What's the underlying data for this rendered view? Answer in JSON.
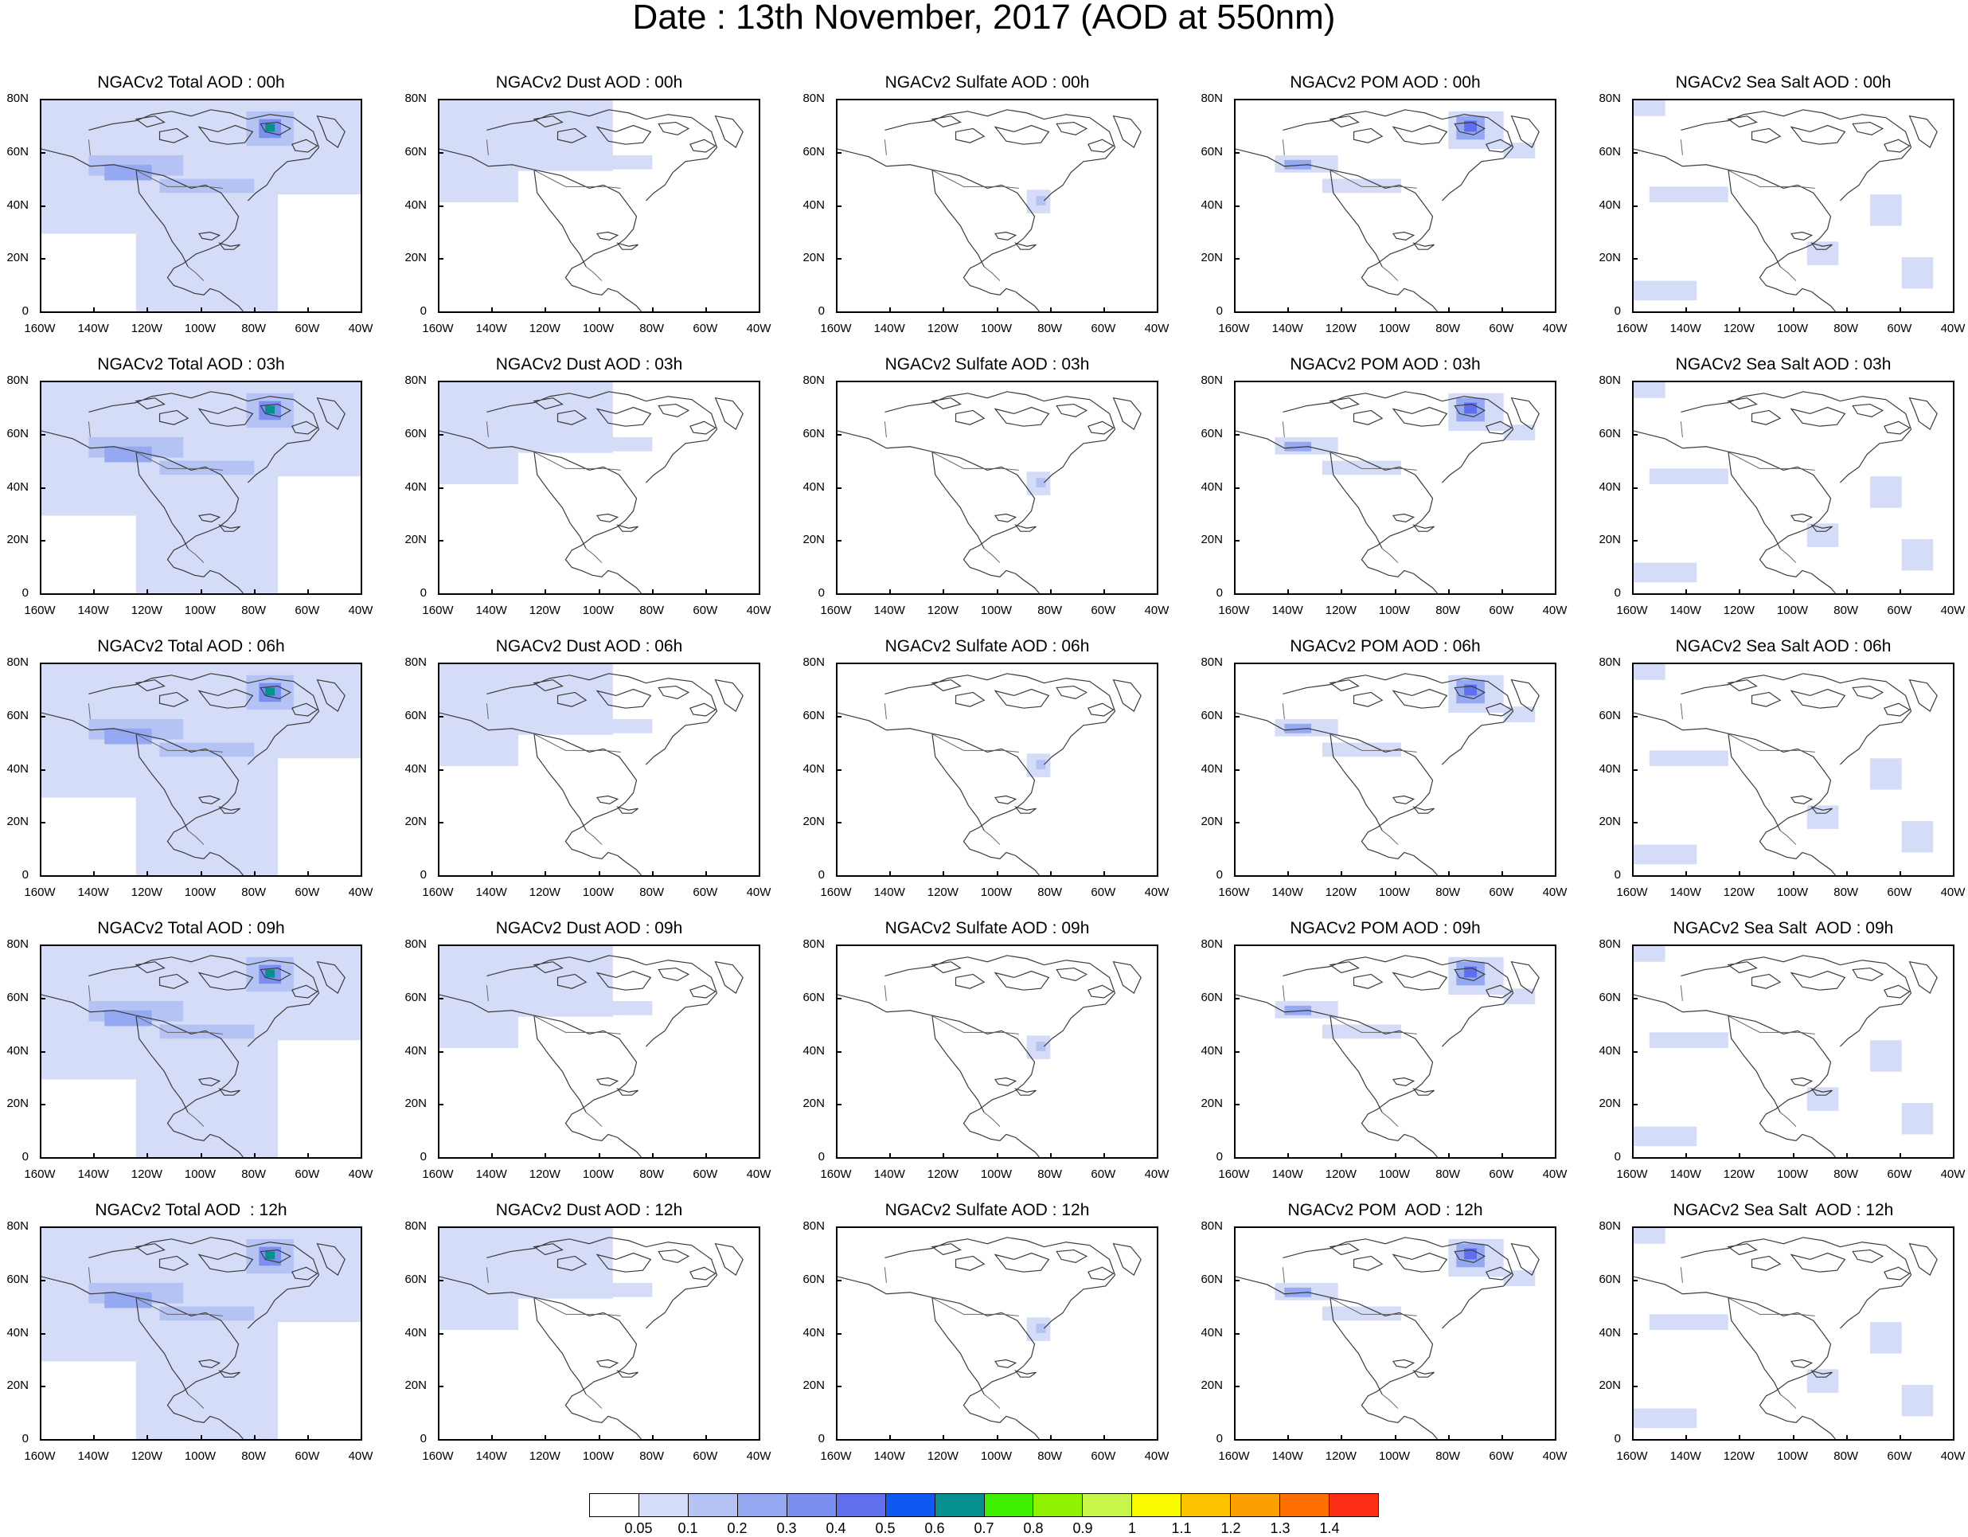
{
  "title": "Date : 13th November, 2017 (AOD at 550nm)",
  "lat_labels": [
    "80N",
    "60N",
    "40N",
    "20N",
    "0"
  ],
  "lon_labels": [
    "160W",
    "140W",
    "120W",
    "100W",
    "80W",
    "60W",
    "40W"
  ],
  "panels": [
    [
      "NGACv2 Total AOD : 00h",
      "NGACv2 Dust AOD : 00h",
      "NGACv2 Sulfate AOD : 00h",
      "NGACv2 POM AOD : 00h",
      "NGACv2 Sea Salt AOD : 00h"
    ],
    [
      "NGACv2 Total AOD : 03h",
      "NGACv2 Dust AOD : 03h",
      "NGACv2 Sulfate AOD : 03h",
      "NGACv2 POM AOD : 03h",
      "NGACv2 Sea Salt AOD : 03h"
    ],
    [
      "NGACv2 Total AOD : 06h",
      "NGACv2 Dust AOD : 06h",
      "NGACv2 Sulfate AOD : 06h",
      "NGACv2 POM AOD : 06h",
      "NGACv2 Sea Salt AOD : 06h"
    ],
    [
      "NGACv2 Total AOD : 09h",
      "NGACv2 Dust AOD : 09h",
      "NGACv2 Sulfate AOD : 09h",
      "NGACv2 POM AOD : 09h",
      "NGACv2 Sea Salt  AOD : 09h"
    ],
    [
      "NGACv2 Total AOD  : 12h",
      "NGACv2 Dust AOD : 12h",
      "NGACv2 Sulfate AOD : 12h",
      "NGACv2 POM  AOD : 12h",
      "NGACv2 Sea Salt  AOD : 12h"
    ]
  ],
  "colorbar": {
    "colors": [
      "#ffffff",
      "#d4dcf7",
      "#b4c3f4",
      "#94a9f2",
      "#7b8ff0",
      "#5f6fee",
      "#0f59f2",
      "#068f8f",
      "#3df000",
      "#8ef200",
      "#c7f54a",
      "#fafa00",
      "#fcc200",
      "#fc9f00",
      "#fc6f00",
      "#fc2f15"
    ],
    "labels": [
      "0.05",
      "0.1",
      "0.2",
      "0.3",
      "0.4",
      "0.5",
      "0.6",
      "0.7",
      "0.8",
      "0.9",
      "1",
      "1.1",
      "1.2",
      "1.3",
      "1.4"
    ]
  }
}
